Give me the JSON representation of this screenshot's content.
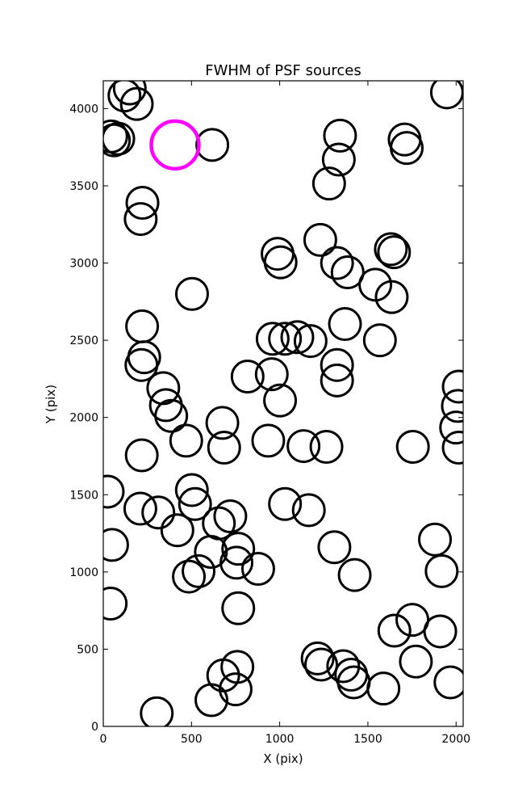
{
  "chart_data": {
    "type": "scatter",
    "title": "FWHM of PSF sources",
    "xlabel": "X (pix)",
    "ylabel": "Y (pix)",
    "xlim": [
      0,
      2040
    ],
    "ylim": [
      0,
      4180
    ],
    "x_ticks": [
      0,
      500,
      1000,
      1500,
      2000
    ],
    "y_ticks": [
      0,
      500,
      1000,
      1500,
      2000,
      2500,
      3000,
      3500,
      4000
    ],
    "grid": false,
    "legend": "none",
    "colors": {
      "sources": "#000000",
      "highlight": "#ff00ff"
    },
    "highlight": {
      "x": 407,
      "y": 3765
    },
    "sources": [
      {
        "x": 150,
        "y": 4130
      },
      {
        "x": 120,
        "y": 4085
      },
      {
        "x": 190,
        "y": 4030
      },
      {
        "x": 1948,
        "y": 4105
      },
      {
        "x": 45,
        "y": 3820
      },
      {
        "x": 60,
        "y": 3795
      },
      {
        "x": 85,
        "y": 3805
      },
      {
        "x": 618,
        "y": 3765
      },
      {
        "x": 1342,
        "y": 3825
      },
      {
        "x": 1335,
        "y": 3670
      },
      {
        "x": 1280,
        "y": 3515
      },
      {
        "x": 1708,
        "y": 3800
      },
      {
        "x": 1720,
        "y": 3745
      },
      {
        "x": 222,
        "y": 3390
      },
      {
        "x": 212,
        "y": 3285
      },
      {
        "x": 1230,
        "y": 3150
      },
      {
        "x": 988,
        "y": 3060
      },
      {
        "x": 1005,
        "y": 3005
      },
      {
        "x": 1325,
        "y": 3000
      },
      {
        "x": 1385,
        "y": 2940
      },
      {
        "x": 1630,
        "y": 3090
      },
      {
        "x": 1648,
        "y": 3070
      },
      {
        "x": 1542,
        "y": 2860
      },
      {
        "x": 1635,
        "y": 2780
      },
      {
        "x": 503,
        "y": 2800
      },
      {
        "x": 1370,
        "y": 2605
      },
      {
        "x": 1568,
        "y": 2500
      },
      {
        "x": 220,
        "y": 2590
      },
      {
        "x": 232,
        "y": 2390
      },
      {
        "x": 216,
        "y": 2340
      },
      {
        "x": 960,
        "y": 2510
      },
      {
        "x": 1030,
        "y": 2510
      },
      {
        "x": 1100,
        "y": 2520
      },
      {
        "x": 1175,
        "y": 2495
      },
      {
        "x": 1325,
        "y": 2340
      },
      {
        "x": 1325,
        "y": 2240
      },
      {
        "x": 818,
        "y": 2265
      },
      {
        "x": 955,
        "y": 2280
      },
      {
        "x": 1002,
        "y": 2110
      },
      {
        "x": 340,
        "y": 2190
      },
      {
        "x": 355,
        "y": 2080
      },
      {
        "x": 385,
        "y": 2010
      },
      {
        "x": 675,
        "y": 1965
      },
      {
        "x": 685,
        "y": 1805
      },
      {
        "x": 470,
        "y": 1850
      },
      {
        "x": 218,
        "y": 1755
      },
      {
        "x": 935,
        "y": 1850
      },
      {
        "x": 1135,
        "y": 1815
      },
      {
        "x": 1265,
        "y": 1810
      },
      {
        "x": 1755,
        "y": 1810
      },
      {
        "x": 2015,
        "y": 2200
      },
      {
        "x": 2010,
        "y": 2075
      },
      {
        "x": 2000,
        "y": 1935
      },
      {
        "x": 2015,
        "y": 1805
      },
      {
        "x": 25,
        "y": 1520
      },
      {
        "x": 50,
        "y": 1175
      },
      {
        "x": 42,
        "y": 795
      },
      {
        "x": 210,
        "y": 1410
      },
      {
        "x": 312,
        "y": 1385
      },
      {
        "x": 502,
        "y": 1530
      },
      {
        "x": 520,
        "y": 1440
      },
      {
        "x": 720,
        "y": 1360
      },
      {
        "x": 655,
        "y": 1315
      },
      {
        "x": 420,
        "y": 1270
      },
      {
        "x": 1030,
        "y": 1440
      },
      {
        "x": 1165,
        "y": 1400
      },
      {
        "x": 610,
        "y": 1130
      },
      {
        "x": 765,
        "y": 1150
      },
      {
        "x": 755,
        "y": 1060
      },
      {
        "x": 540,
        "y": 1005
      },
      {
        "x": 485,
        "y": 970
      },
      {
        "x": 878,
        "y": 1020
      },
      {
        "x": 1310,
        "y": 1160
      },
      {
        "x": 1425,
        "y": 980
      },
      {
        "x": 1880,
        "y": 1210
      },
      {
        "x": 1918,
        "y": 1005
      },
      {
        "x": 765,
        "y": 765
      },
      {
        "x": 1650,
        "y": 620
      },
      {
        "x": 1752,
        "y": 690
      },
      {
        "x": 1910,
        "y": 615
      },
      {
        "x": 1772,
        "y": 420
      },
      {
        "x": 1215,
        "y": 440
      },
      {
        "x": 1235,
        "y": 400
      },
      {
        "x": 1360,
        "y": 390
      },
      {
        "x": 1405,
        "y": 335
      },
      {
        "x": 1420,
        "y": 285
      },
      {
        "x": 1588,
        "y": 245
      },
      {
        "x": 1968,
        "y": 285
      },
      {
        "x": 760,
        "y": 385
      },
      {
        "x": 680,
        "y": 330
      },
      {
        "x": 750,
        "y": 240
      },
      {
        "x": 613,
        "y": 170
      },
      {
        "x": 303,
        "y": 85
      }
    ]
  }
}
